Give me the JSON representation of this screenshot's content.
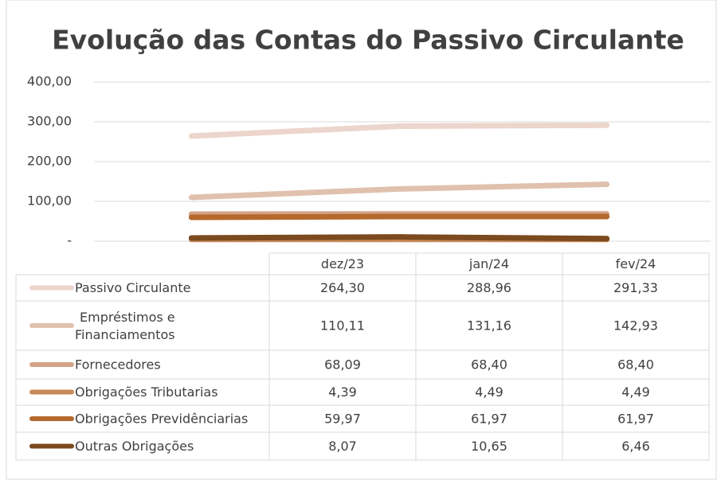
{
  "chart_data": {
    "type": "line",
    "title": "Evolução das  Contas do Passivo Circulante",
    "categories": [
      "dez/23",
      "jan/24",
      "fev/24"
    ],
    "series": [
      {
        "name": "Passivo Circulante",
        "color": "#ecd5cc",
        "values": [
          264.3,
          288.96,
          291.33
        ],
        "value_labels": [
          "264,30",
          "288,96",
          "291,33"
        ]
      },
      {
        "name": "Empréstimos e Financiamentos",
        "color": "#dfc1ae",
        "values": [
          110.11,
          131.16,
          142.93
        ],
        "value_labels": [
          "110,11",
          "131,16",
          "142,93"
        ]
      },
      {
        "name": "Fornecedores",
        "color": "#d3a386",
        "values": [
          68.09,
          68.4,
          68.4
        ],
        "value_labels": [
          "68,09",
          "68,40",
          "68,40"
        ]
      },
      {
        "name": "Obrigações Tributarias",
        "color": "#c98a58",
        "values": [
          4.39,
          4.49,
          4.49
        ],
        "value_labels": [
          "4,39",
          "4,49",
          "4,49"
        ]
      },
      {
        "name": "Obrigações Previdênciarias",
        "color": "#b5692c",
        "values": [
          59.97,
          61.97,
          61.97
        ],
        "value_labels": [
          "59,97",
          "61,97",
          "61,97"
        ]
      },
      {
        "name": "Outras Obrigações",
        "color": "#7b4a1e",
        "values": [
          8.07,
          10.65,
          6.46
        ],
        "value_labels": [
          "8,07",
          "10,65",
          "6,46"
        ]
      }
    ],
    "ylim": [
      0,
      400
    ],
    "yticks": [
      {
        "value": 0,
        "label": "-"
      },
      {
        "value": 100,
        "label": "100,00"
      },
      {
        "value": 200,
        "label": "200,00"
      },
      {
        "value": 300,
        "label": "300,00"
      },
      {
        "value": 400,
        "label": "400,00"
      }
    ],
    "grid": true
  }
}
